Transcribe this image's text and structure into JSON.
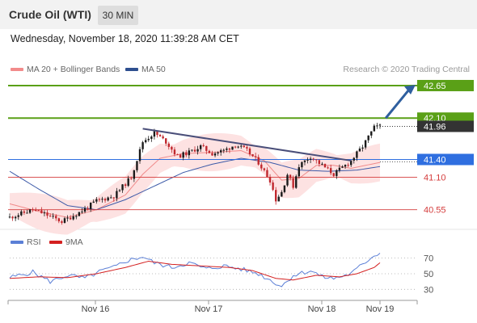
{
  "header": {
    "title": "Crude Oil (WTI)",
    "timeframe": "30 MIN"
  },
  "datetime": "Wednesday, November 18, 2020 11:39:28 AM CET",
  "legend": {
    "items": [
      {
        "label": "MA 20 + Bollinger Bands",
        "color": "#f28b8b"
      },
      {
        "label": "MA 50",
        "color": "#2e4f8f"
      }
    ],
    "credit": "Research © 2020 Trading Central"
  },
  "rsi_legend": {
    "items": [
      {
        "label": "RSI",
        "color": "#5b7fd6"
      },
      {
        "label": "9MA",
        "color": "#d42020"
      }
    ]
  },
  "colors": {
    "resistance": "#5aa017",
    "pivot": "#2f6fe0",
    "support": "#d43c3c",
    "current": "#333333",
    "arrow": "#2f5f9f",
    "candle_up": "#1a1a1a",
    "candle_down": "#c0272d",
    "band_fill": "#fde2e2"
  },
  "chart_data": [
    {
      "type": "candlestick",
      "ylim": [
        40.3,
        42.8
      ],
      "x_ticks": [
        "Nov 16",
        "Nov 17",
        "Nov 18",
        "Nov 19"
      ],
      "levels": [
        {
          "value": 42.65,
          "label": "42.65",
          "kind": "resistance"
        },
        {
          "value": 42.1,
          "label": "42.10",
          "kind": "resistance"
        },
        {
          "value": 41.96,
          "label": "41.96",
          "kind": "current"
        },
        {
          "value": 41.4,
          "label": "41.40",
          "kind": "pivot"
        },
        {
          "value": 41.1,
          "label": "41.10",
          "kind": "support"
        },
        {
          "value": 40.55,
          "label": "40.55",
          "kind": "support"
        }
      ],
      "trendline": {
        "from": [
          46,
          41.92
        ],
        "to": [
          118,
          41.38
        ]
      },
      "forecast_arrow": {
        "from": [
          118,
          41.38
        ],
        "to": [
          130,
          42.1
        ],
        "target": 42.65
      },
      "price_knots": [
        [
          0,
          40.42
        ],
        [
          8,
          40.55
        ],
        [
          12,
          40.48
        ],
        [
          18,
          40.35
        ],
        [
          22,
          40.45
        ],
        [
          26,
          40.56
        ],
        [
          30,
          40.7
        ],
        [
          36,
          40.78
        ],
        [
          42,
          41.1
        ],
        [
          46,
          41.7
        ],
        [
          50,
          41.85
        ],
        [
          54,
          41.7
        ],
        [
          58,
          41.45
        ],
        [
          62,
          41.52
        ],
        [
          66,
          41.62
        ],
        [
          70,
          41.5
        ],
        [
          74,
          41.55
        ],
        [
          78,
          41.65
        ],
        [
          82,
          41.55
        ],
        [
          86,
          41.35
        ],
        [
          88,
          41.2
        ],
        [
          90,
          41.05
        ],
        [
          92,
          40.72
        ],
        [
          94,
          40.85
        ],
        [
          96,
          41.15
        ],
        [
          98,
          40.95
        ],
        [
          100,
          41.3
        ],
        [
          104,
          41.45
        ],
        [
          108,
          41.3
        ],
        [
          112,
          41.15
        ],
        [
          116,
          41.3
        ],
        [
          118,
          41.38
        ],
        [
          122,
          41.62
        ],
        [
          126,
          41.94
        ],
        [
          128,
          41.96
        ]
      ],
      "ma20_knots": [
        [
          0,
          40.65
        ],
        [
          10,
          40.52
        ],
        [
          20,
          40.42
        ],
        [
          30,
          40.55
        ],
        [
          40,
          40.8
        ],
        [
          46,
          41.15
        ],
        [
          52,
          41.42
        ],
        [
          60,
          41.5
        ],
        [
          70,
          41.52
        ],
        [
          80,
          41.55
        ],
        [
          88,
          41.38
        ],
        [
          94,
          41.05
        ],
        [
          100,
          41.08
        ],
        [
          106,
          41.3
        ],
        [
          112,
          41.3
        ],
        [
          118,
          41.25
        ],
        [
          128,
          41.35
        ]
      ],
      "ma50_knots": [
        [
          0,
          41.2
        ],
        [
          10,
          40.9
        ],
        [
          20,
          40.62
        ],
        [
          30,
          40.55
        ],
        [
          40,
          40.72
        ],
        [
          50,
          40.95
        ],
        [
          60,
          41.18
        ],
        [
          70,
          41.32
        ],
        [
          80,
          41.42
        ],
        [
          90,
          41.35
        ],
        [
          100,
          41.22
        ],
        [
          110,
          41.2
        ],
        [
          120,
          41.22
        ],
        [
          128,
          41.28
        ]
      ]
    },
    {
      "type": "line",
      "ylim": [
        20,
        82
      ],
      "y_ticks": [
        30,
        50,
        70
      ],
      "rsi_knots": [
        [
          0,
          45
        ],
        [
          8,
          52
        ],
        [
          14,
          40
        ],
        [
          20,
          48
        ],
        [
          26,
          44
        ],
        [
          32,
          54
        ],
        [
          36,
          58
        ],
        [
          40,
          66
        ],
        [
          46,
          72
        ],
        [
          50,
          64
        ],
        [
          56,
          58
        ],
        [
          62,
          64
        ],
        [
          68,
          56
        ],
        [
          74,
          60
        ],
        [
          80,
          56
        ],
        [
          86,
          50
        ],
        [
          90,
          42
        ],
        [
          94,
          34
        ],
        [
          98,
          48
        ],
        [
          104,
          54
        ],
        [
          108,
          46
        ],
        [
          112,
          44
        ],
        [
          118,
          50
        ],
        [
          122,
          62
        ],
        [
          126,
          74
        ],
        [
          128,
          76
        ]
      ],
      "ma9_knots": [
        [
          0,
          44
        ],
        [
          10,
          46
        ],
        [
          20,
          45
        ],
        [
          30,
          50
        ],
        [
          40,
          58
        ],
        [
          48,
          66
        ],
        [
          56,
          62
        ],
        [
          66,
          60
        ],
        [
          76,
          58
        ],
        [
          84,
          54
        ],
        [
          92,
          44
        ],
        [
          98,
          42
        ],
        [
          106,
          48
        ],
        [
          114,
          46
        ],
        [
          120,
          50
        ],
        [
          126,
          58
        ],
        [
          128,
          64
        ]
      ]
    }
  ]
}
